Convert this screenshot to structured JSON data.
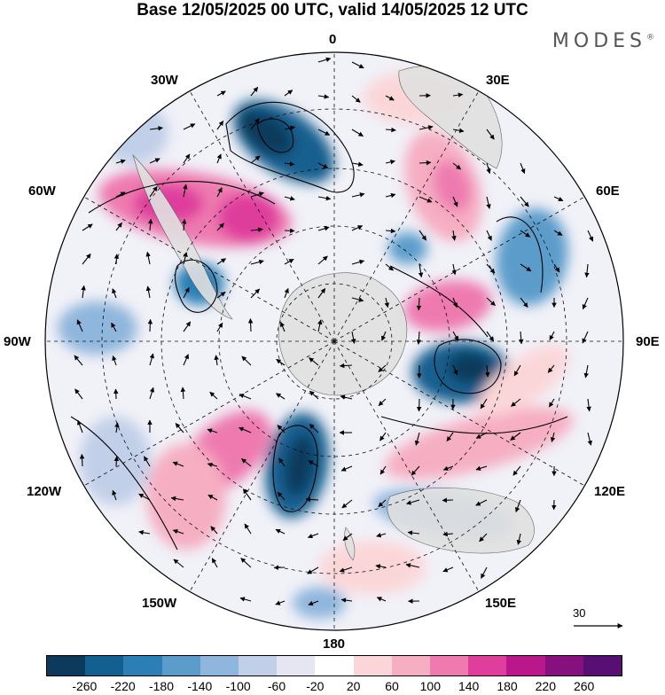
{
  "title": "Base 12/05/2025 00 UTC, valid 14/05/2025 12 UTC",
  "brand": "MODES",
  "brand_mark": "®",
  "longitude_labels": {
    "lon_0": "0",
    "lon_30e": "30E",
    "lon_60e": "60E",
    "lon_90e": "90E",
    "lon_120e": "120E",
    "lon_150e": "150E",
    "lon_180": "180",
    "lon_150w": "150W",
    "lon_120w": "120W",
    "lon_90w": "90W",
    "lon_60w": "60W",
    "lon_30w": "30W"
  },
  "vector_reference": "30",
  "colorbar": {
    "labels": [
      "-260",
      "-220",
      "-180",
      "-140",
      "-100",
      "-60",
      "-20",
      "20",
      "60",
      "100",
      "140",
      "180",
      "220",
      "260"
    ],
    "colors": [
      "#0b3a5c",
      "#135f8f",
      "#2b7fb5",
      "#5b9ccb",
      "#8fb6dc",
      "#c1cfe8",
      "#e6e6f3",
      "#ffffff",
      "#fbd6d8",
      "#f6aec2",
      "#ee7ab0",
      "#df3e9c",
      "#bb178c",
      "#86107e",
      "#580f74"
    ]
  },
  "map_colors": {
    "land": "#e4e4e4",
    "ocean": "#ffffff",
    "contour": "#000000"
  }
}
